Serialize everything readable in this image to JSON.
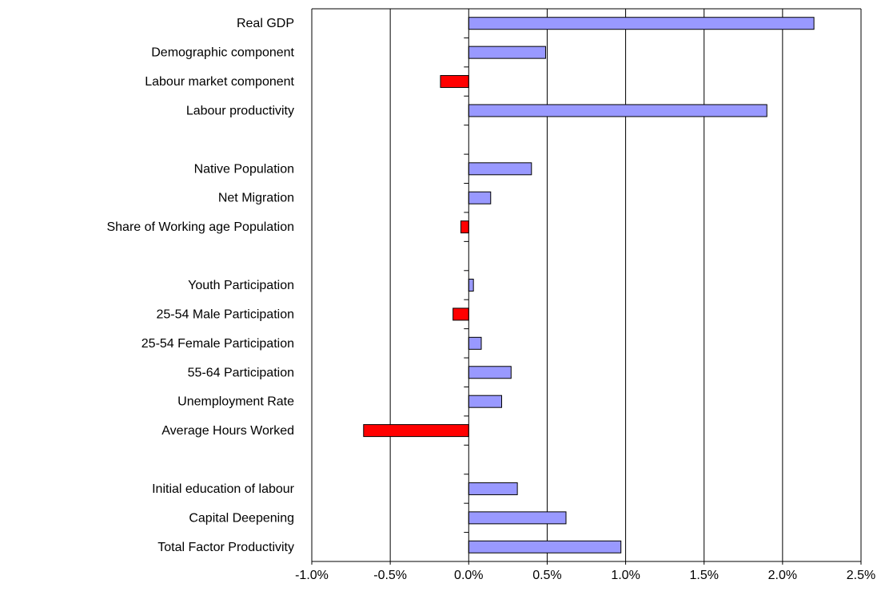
{
  "chart_data": {
    "type": "bar",
    "orientation": "horizontal",
    "title": "",
    "xlabel": "",
    "ylabel": "",
    "xlim": [
      -0.01,
      0.025
    ],
    "x_ticks": [
      "-1.0%",
      "-0.5%",
      "0.0%",
      "0.5%",
      "1.0%",
      "1.5%",
      "2.0%",
      "2.5%"
    ],
    "x_tick_values": [
      -0.01,
      -0.005,
      0,
      0.005,
      0.01,
      0.015,
      0.02,
      0.025
    ],
    "vertical_gridlines": true,
    "legend": "none",
    "colors": {
      "positive": "#9999ff",
      "negative": "#ff0000",
      "bar_border": "#000000",
      "grid": "#000000",
      "axis": "#000000"
    },
    "categories": [
      "Real GDP",
      "Demographic component",
      "Labour market component",
      "Labour productivity",
      "",
      "Native Population",
      "Net Migration",
      "Share of Working age Population",
      "",
      "Youth Participation",
      "25-54 Male Participation",
      "25-54 Female Participation",
      "55-64 Participation",
      "Unemployment Rate",
      "Average Hours Worked",
      "",
      "Initial education of labour",
      "Capital Deepening",
      "Total Factor Productivity"
    ],
    "values": [
      0.022,
      0.0049,
      -0.0018,
      0.019,
      null,
      0.004,
      0.0014,
      -0.0005,
      null,
      0.0003,
      -0.001,
      0.0008,
      0.0027,
      0.0021,
      -0.0067,
      null,
      0.0031,
      0.0062,
      0.0097
    ]
  }
}
